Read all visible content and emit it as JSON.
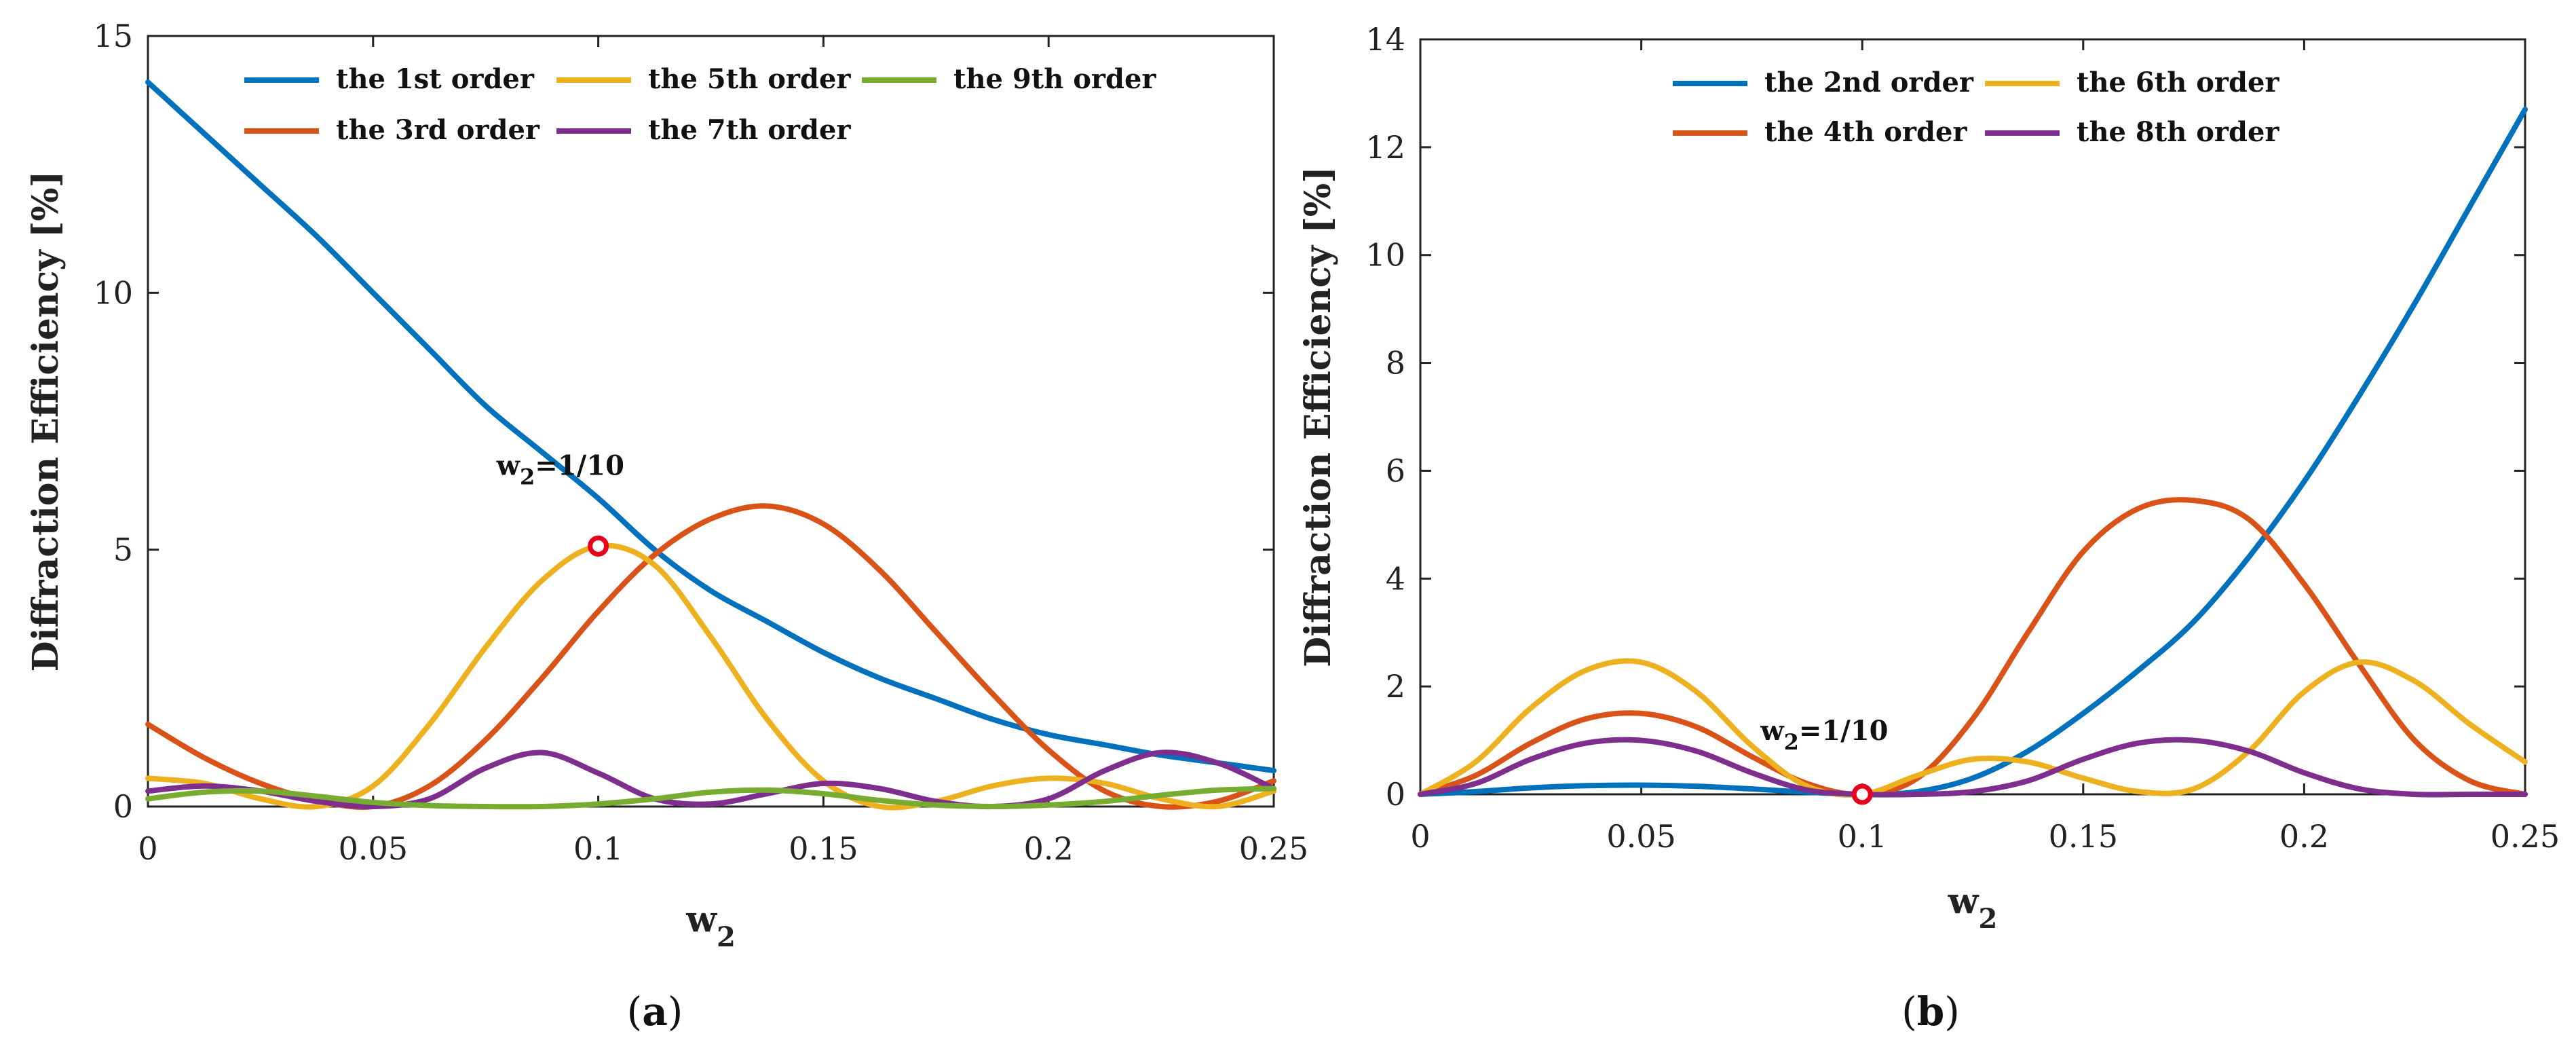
{
  "colors": {
    "blue": "#0072BD",
    "orange": "#D95319",
    "yellow": "#EDB120",
    "purple": "#7E2F8E",
    "green": "#77AC30",
    "marker": "#E8001C"
  },
  "chart_data": [
    {
      "type": "line",
      "panel_label": "a",
      "title": "",
      "xlabel": "w",
      "xlabel_sub": "2",
      "ylabel": "Diffraction Efficiency [%]",
      "xlim": [
        0,
        0.25
      ],
      "ylim": [
        0,
        15
      ],
      "xticks": [
        0,
        0.05,
        0.1,
        0.15,
        0.2,
        0.25
      ],
      "xtick_labels": [
        "0",
        "0.05",
        "0.1",
        "0.15",
        "0.2",
        "0.25"
      ],
      "yticks": [
        0,
        5,
        10,
        15
      ],
      "ytick_labels": [
        "0",
        "5",
        "10",
        "15"
      ],
      "legend_placement": "top-center",
      "annotation": {
        "text": "=1/10",
        "prefix": "w",
        "sub": "2",
        "x": 0.1,
        "y": 5.07
      },
      "series": [
        {
          "name": "the 1st order",
          "color": "blue",
          "x": [
            0,
            0.0125,
            0.025,
            0.0375,
            0.05,
            0.0625,
            0.075,
            0.0875,
            0.1,
            0.1125,
            0.125,
            0.1375,
            0.15,
            0.1625,
            0.175,
            0.1875,
            0.2,
            0.2125,
            0.225,
            0.2375,
            0.25
          ],
          "y": [
            14.1,
            13.1,
            12.1,
            11.1,
            10.0,
            8.9,
            7.8,
            6.9,
            6.0,
            5.0,
            4.2,
            3.6,
            3.0,
            2.5,
            2.1,
            1.7,
            1.4,
            1.2,
            1.0,
            0.85,
            0.7
          ]
        },
        {
          "name": "the 3rd order",
          "color": "orange",
          "x": [
            0,
            0.0125,
            0.025,
            0.0375,
            0.05,
            0.0625,
            0.075,
            0.0875,
            0.1,
            0.1125,
            0.125,
            0.1375,
            0.15,
            0.1625,
            0.175,
            0.1875,
            0.2,
            0.2125,
            0.225,
            0.2375,
            0.25
          ],
          "y": [
            1.6,
            0.95,
            0.45,
            0.12,
            0.0,
            0.4,
            1.3,
            2.5,
            3.8,
            4.9,
            5.6,
            5.85,
            5.5,
            4.6,
            3.4,
            2.2,
            1.1,
            0.3,
            0.0,
            0.1,
            0.5
          ]
        },
        {
          "name": "the 5th order",
          "color": "yellow",
          "x": [
            0,
            0.0125,
            0.025,
            0.0375,
            0.05,
            0.0625,
            0.075,
            0.0875,
            0.1,
            0.1125,
            0.125,
            0.1375,
            0.15,
            0.1625,
            0.175,
            0.1875,
            0.2,
            0.2125,
            0.225,
            0.2375,
            0.25
          ],
          "y": [
            0.55,
            0.45,
            0.15,
            0.0,
            0.4,
            1.6,
            3.1,
            4.4,
            5.07,
            4.7,
            3.3,
            1.7,
            0.5,
            0.0,
            0.1,
            0.4,
            0.55,
            0.45,
            0.15,
            0.0,
            0.3
          ]
        },
        {
          "name": "the 7th order",
          "color": "purple",
          "x": [
            0,
            0.0125,
            0.025,
            0.0375,
            0.05,
            0.0625,
            0.075,
            0.0875,
            0.1,
            0.1125,
            0.125,
            0.1375,
            0.15,
            0.1625,
            0.175,
            0.1875,
            0.2,
            0.2125,
            0.225,
            0.2375,
            0.25
          ],
          "y": [
            0.3,
            0.4,
            0.3,
            0.1,
            0.0,
            0.15,
            0.75,
            1.05,
            0.65,
            0.15,
            0.05,
            0.25,
            0.45,
            0.35,
            0.1,
            0.0,
            0.15,
            0.7,
            1.05,
            0.85,
            0.35
          ]
        },
        {
          "name": "the 9th order",
          "color": "green",
          "x": [
            0,
            0.0125,
            0.025,
            0.0375,
            0.05,
            0.0625,
            0.075,
            0.0875,
            0.1,
            0.1125,
            0.125,
            0.1375,
            0.15,
            0.1625,
            0.175,
            0.1875,
            0.2,
            0.2125,
            0.225,
            0.2375,
            0.25
          ],
          "y": [
            0.15,
            0.28,
            0.3,
            0.2,
            0.08,
            0.02,
            0.0,
            0.0,
            0.05,
            0.15,
            0.28,
            0.32,
            0.25,
            0.12,
            0.03,
            0.0,
            0.03,
            0.1,
            0.22,
            0.32,
            0.35
          ]
        }
      ],
      "legend_order": [
        "the 1st order",
        "the 5th order",
        "the 9th order",
        "the 3rd order",
        "the 7th order"
      ]
    },
    {
      "type": "line",
      "panel_label": "b",
      "title": "",
      "xlabel": "w",
      "xlabel_sub": "2",
      "ylabel": "Diffraction Efficiency [%]",
      "xlim": [
        0,
        0.25
      ],
      "ylim": [
        0,
        14
      ],
      "xticks": [
        0,
        0.05,
        0.1,
        0.15,
        0.2,
        0.25
      ],
      "xtick_labels": [
        "0",
        "0.05",
        "0.1",
        "0.15",
        "0.2",
        "0.25"
      ],
      "yticks": [
        0,
        2,
        4,
        6,
        8,
        10,
        12,
        14
      ],
      "ytick_labels": [
        "0",
        "2",
        "4",
        "6",
        "8",
        "10",
        "12",
        "14"
      ],
      "legend_placement": "top-center",
      "annotation": {
        "text": "=1/10",
        "prefix": "w",
        "sub": "2",
        "x": 0.1,
        "y": 0.0
      },
      "series": [
        {
          "name": "the 2nd order",
          "color": "blue",
          "x": [
            0,
            0.0125,
            0.025,
            0.0375,
            0.05,
            0.0625,
            0.075,
            0.0875,
            0.1,
            0.1125,
            0.125,
            0.1375,
            0.15,
            0.1625,
            0.175,
            0.1875,
            0.2,
            0.2125,
            0.225,
            0.2375,
            0.25
          ],
          "y": [
            0.0,
            0.05,
            0.12,
            0.16,
            0.17,
            0.15,
            0.1,
            0.04,
            0.0,
            0.05,
            0.3,
            0.8,
            1.5,
            2.3,
            3.2,
            4.4,
            5.8,
            7.4,
            9.1,
            10.9,
            12.7
          ]
        },
        {
          "name": "the 4th order",
          "color": "orange",
          "x": [
            0,
            0.0125,
            0.025,
            0.0375,
            0.05,
            0.0625,
            0.075,
            0.0875,
            0.1,
            0.1125,
            0.125,
            0.1375,
            0.15,
            0.1625,
            0.175,
            0.1875,
            0.2,
            0.2125,
            0.225,
            0.2375,
            0.25
          ],
          "y": [
            0.0,
            0.35,
            0.95,
            1.4,
            1.5,
            1.25,
            0.7,
            0.2,
            0.0,
            0.3,
            1.4,
            3.0,
            4.5,
            5.3,
            5.45,
            5.1,
            3.9,
            2.4,
            1.0,
            0.25,
            0.0
          ]
        },
        {
          "name": "the 6th order",
          "color": "yellow",
          "x": [
            0,
            0.0125,
            0.025,
            0.0375,
            0.05,
            0.0625,
            0.075,
            0.0875,
            0.1,
            0.1125,
            0.125,
            0.1375,
            0.15,
            0.1625,
            0.175,
            0.1875,
            0.2,
            0.2125,
            0.225,
            0.2375,
            0.25
          ],
          "y": [
            0.0,
            0.6,
            1.6,
            2.3,
            2.45,
            1.9,
            0.9,
            0.15,
            0.0,
            0.35,
            0.65,
            0.6,
            0.3,
            0.05,
            0.1,
            0.8,
            1.9,
            2.45,
            2.1,
            1.3,
            0.6
          ]
        },
        {
          "name": "the 8th order",
          "color": "purple",
          "x": [
            0,
            0.0125,
            0.025,
            0.0375,
            0.05,
            0.0625,
            0.075,
            0.0875,
            0.1,
            0.1125,
            0.125,
            0.1375,
            0.15,
            0.1625,
            0.175,
            0.1875,
            0.2,
            0.2125,
            0.225,
            0.2375,
            0.25
          ],
          "y": [
            0.0,
            0.2,
            0.65,
            0.95,
            1.0,
            0.8,
            0.4,
            0.08,
            0.0,
            0.0,
            0.05,
            0.25,
            0.65,
            0.95,
            1.0,
            0.8,
            0.4,
            0.1,
            0.0,
            0.0,
            0.0
          ]
        }
      ],
      "legend_order": [
        "the 2nd order",
        "the 6th order",
        "the 4th order",
        "the 8th order"
      ]
    }
  ]
}
